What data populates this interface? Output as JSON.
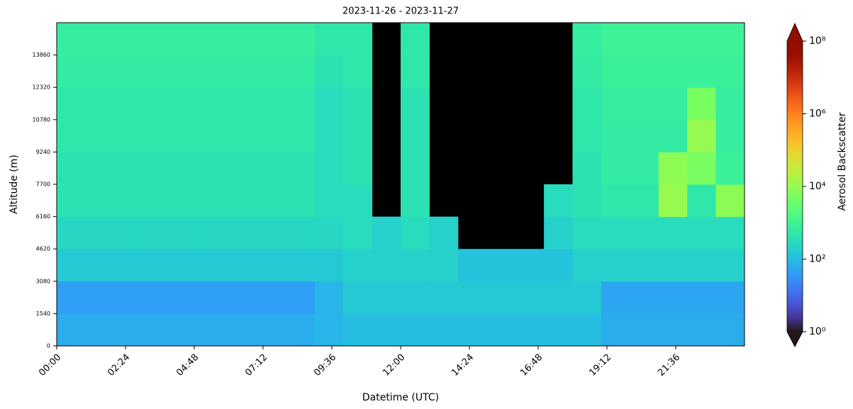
{
  "chart_data": {
    "type": "heatmap",
    "title": "2023-11-26 - 2023-11-27",
    "x_label": "Datetime (UTC)",
    "y_label": "Altitude (m)",
    "colorbar_label": "Aerosol Backscatter",
    "colormap": "turbo",
    "colorscale": "log",
    "clim": [
      1,
      100000000
    ],
    "cticks": [
      {
        "value": 1,
        "label": "10⁰"
      },
      {
        "value": 100,
        "label": "10²"
      },
      {
        "value": 10000,
        "label": "10⁴"
      },
      {
        "value": 1000000,
        "label": "10⁶"
      },
      {
        "value": 100000000,
        "label": "10⁸"
      }
    ],
    "xlim": [
      0,
      1440
    ],
    "xticks": [
      {
        "value": 0,
        "label": "00:00"
      },
      {
        "value": 144,
        "label": "02:24"
      },
      {
        "value": 288,
        "label": "04:48"
      },
      {
        "value": 432,
        "label": "07:12"
      },
      {
        "value": 576,
        "label": "09:36"
      },
      {
        "value": 720,
        "label": "12:00"
      },
      {
        "value": 864,
        "label": "14:24"
      },
      {
        "value": 1008,
        "label": "16:48"
      },
      {
        "value": 1152,
        "label": "19:12"
      },
      {
        "value": 1296,
        "label": "21:36"
      }
    ],
    "ylim": [
      0,
      15400
    ],
    "yticks": [
      0,
      1540,
      3080,
      4620,
      6160,
      7700,
      9240,
      10780,
      12320,
      13860
    ],
    "values": [
      [
        60,
        60,
        60,
        60,
        60,
        60,
        60,
        60,
        60,
        80,
        100,
        100,
        100,
        100,
        100,
        100,
        100,
        100,
        100,
        60,
        60,
        60,
        60,
        60
      ],
      [
        40,
        40,
        40,
        40,
        40,
        40,
        40,
        40,
        40,
        80,
        150,
        150,
        150,
        150,
        150,
        150,
        150,
        150,
        150,
        50,
        50,
        50,
        50,
        50
      ],
      [
        150,
        150,
        150,
        150,
        150,
        150,
        150,
        150,
        150,
        150,
        200,
        200,
        200,
        200,
        120,
        120,
        120,
        120,
        200,
        200,
        200,
        200,
        200,
        200
      ],
      [
        250,
        250,
        250,
        250,
        250,
        250,
        250,
        250,
        250,
        250,
        300,
        200,
        300,
        200,
        null,
        null,
        null,
        200,
        300,
        300,
        300,
        300,
        300,
        300
      ],
      [
        400,
        400,
        400,
        400,
        400,
        400,
        400,
        400,
        400,
        300,
        300,
        null,
        400,
        null,
        null,
        null,
        null,
        300,
        400,
        500,
        500,
        10000,
        500,
        8000
      ],
      [
        400,
        400,
        400,
        400,
        400,
        400,
        400,
        400,
        400,
        300,
        400,
        null,
        400,
        null,
        null,
        null,
        null,
        null,
        400,
        600,
        600,
        8000,
        5000,
        800
      ],
      [
        500,
        500,
        500,
        500,
        500,
        500,
        500,
        500,
        500,
        300,
        400,
        null,
        400,
        null,
        null,
        null,
        null,
        null,
        500,
        600,
        600,
        600,
        10000,
        700
      ],
      [
        500,
        500,
        500,
        500,
        500,
        500,
        500,
        500,
        500,
        300,
        400,
        null,
        400,
        null,
        null,
        null,
        null,
        null,
        500,
        700,
        700,
        700,
        5000,
        700
      ],
      [
        600,
        600,
        600,
        600,
        600,
        600,
        600,
        600,
        600,
        400,
        500,
        null,
        500,
        null,
        null,
        null,
        null,
        null,
        600,
        800,
        800,
        800,
        800,
        800
      ],
      [
        700,
        700,
        700,
        700,
        700,
        700,
        700,
        700,
        700,
        500,
        500,
        null,
        500,
        null,
        null,
        null,
        null,
        null,
        700,
        900,
        900,
        900,
        900,
        900
      ]
    ]
  }
}
